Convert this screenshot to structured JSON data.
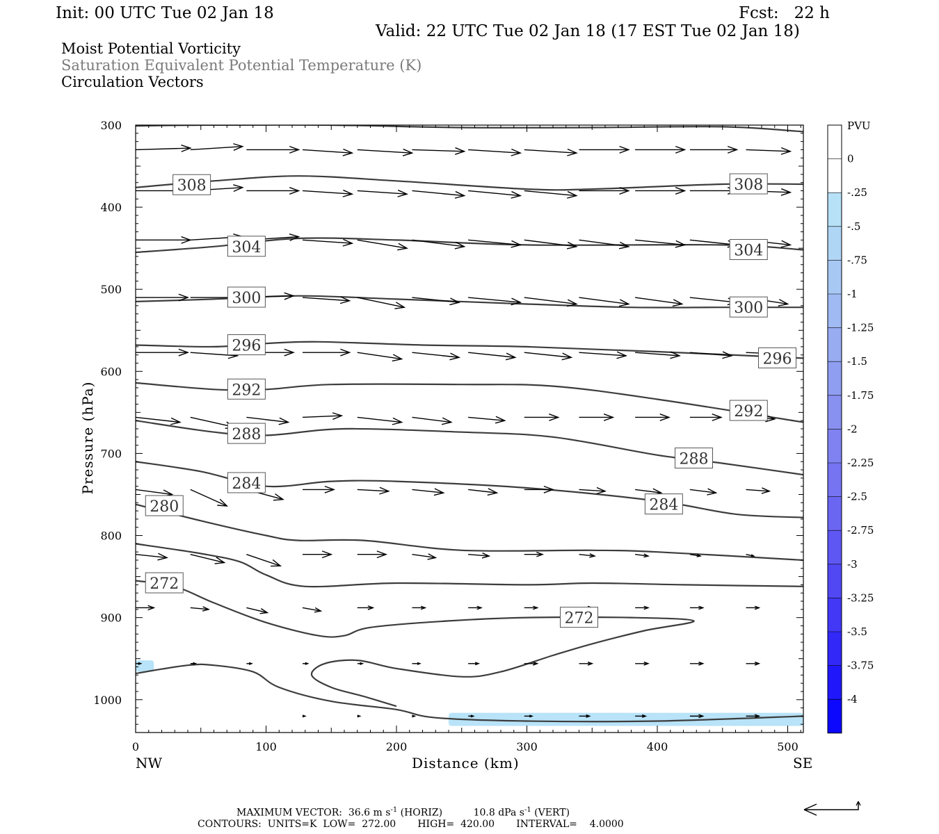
{
  "header": {
    "init": "Init: 00 UTC Tue 02 Jan 18",
    "fcst": "Fcst:   22 h",
    "valid": "Valid: 22 UTC Tue 02 Jan 18 (17 EST Tue 02 Jan 18)",
    "fields": [
      "Moist Potential Vorticity",
      "Saturation Equivalent Potential Temperature (K)",
      "Circulation Vectors"
    ]
  },
  "footer": {
    "max_vector_label": "MAXIMUM VECTOR:",
    "max_horiz": "36.6 m s",
    "horiz_unit": "(HORIZ)",
    "max_vert": "10.8 dPa s",
    "vert_unit": "(VERT)",
    "exp": "-1",
    "contours": "CONTOURS:  UNITS=K  LOW=  272.00       HIGH=  420.00       INTERVAL=    4.0000"
  },
  "colorbar": {
    "title": "PVU",
    "labels": [
      "0",
      "-.25",
      "-.5",
      "-.75",
      "-1",
      "-1.25",
      "-1.5",
      "-1.75",
      "-2",
      "-2.25",
      "-2.5",
      "-2.75",
      "-3",
      "-3.25",
      "-3.5",
      "-3.75",
      "-4"
    ],
    "colors": [
      "#ffffff",
      "#ffffff",
      "#b7e1f7",
      "#b0d6f6",
      "#a8c8f4",
      "#a0baf3",
      "#98acf2",
      "#909ef1",
      "#8890f0",
      "#7f82f0",
      "#7674f1",
      "#6b66f2",
      "#5f57f3",
      "#5148f4",
      "#4238f6",
      "#3228f8",
      "#2018fa",
      "#0c08fd"
    ]
  },
  "chart_data": {
    "type": "cross-section",
    "xlabel": "Distance (km)",
    "ylabel": "Pressure (hPa)",
    "xlim": [
      0,
      512
    ],
    "ylim": [
      1040,
      300
    ],
    "y_scale": "linear",
    "x_ticks": [
      "0",
      "100",
      "200",
      "300",
      "400",
      "500"
    ],
    "y_ticks": [
      "300",
      "400",
      "500",
      "600",
      "700",
      "800",
      "900",
      "1000"
    ],
    "x_end_labels": {
      "left": "NW",
      "right": "SE"
    },
    "theta_e_contours": [
      {
        "value": null,
        "label": "",
        "points": [
          [
            0,
            301
          ],
          [
            50,
            300
          ],
          [
            150,
            300
          ],
          [
            250,
            303
          ],
          [
            350,
            303
          ],
          [
            450,
            302
          ],
          [
            512,
            308
          ]
        ]
      },
      {
        "value": 308,
        "label": "308",
        "points": [
          [
            0,
            376
          ],
          [
            60,
            368
          ],
          [
            125,
            362
          ],
          [
            200,
            368
          ],
          [
            300,
            378
          ],
          [
            350,
            378
          ],
          [
            450,
            372
          ],
          [
            512,
            372
          ]
        ]
      },
      {
        "value": 304,
        "label": "304",
        "points": [
          [
            0,
            455
          ],
          [
            60,
            448
          ],
          [
            125,
            438
          ],
          [
            200,
            440
          ],
          [
            300,
            446
          ],
          [
            450,
            446
          ],
          [
            512,
            452
          ]
        ]
      },
      {
        "value": 300,
        "label": "300",
        "points": [
          [
            0,
            515
          ],
          [
            60,
            512
          ],
          [
            125,
            508
          ],
          [
            200,
            512
          ],
          [
            300,
            518
          ],
          [
            380,
            522
          ],
          [
            450,
            522
          ],
          [
            512,
            522
          ]
        ]
      },
      {
        "value": 296,
        "label": "296",
        "points": [
          [
            0,
            568
          ],
          [
            60,
            570
          ],
          [
            100,
            566
          ],
          [
            140,
            564
          ],
          [
            220,
            568
          ],
          [
            300,
            570
          ],
          [
            400,
            576
          ],
          [
            512,
            584
          ]
        ]
      },
      {
        "value": 292,
        "label": "292",
        "points": [
          [
            0,
            614
          ],
          [
            60,
            622
          ],
          [
            100,
            622
          ],
          [
            150,
            616
          ],
          [
            250,
            616
          ],
          [
            320,
            618
          ],
          [
            400,
            634
          ],
          [
            512,
            662
          ]
        ]
      },
      {
        "value": 288,
        "label": "288",
        "points": [
          [
            0,
            660
          ],
          [
            60,
            674
          ],
          [
            100,
            678
          ],
          [
            160,
            670
          ],
          [
            250,
            674
          ],
          [
            320,
            680
          ],
          [
            400,
            702
          ],
          [
            450,
            712
          ],
          [
            512,
            726
          ]
        ]
      },
      {
        "value": 284,
        "label": "284",
        "points": [
          [
            0,
            710
          ],
          [
            50,
            722
          ],
          [
            100,
            740
          ],
          [
            150,
            734
          ],
          [
            200,
            734
          ],
          [
            300,
            742
          ],
          [
            400,
            758
          ],
          [
            460,
            774
          ],
          [
            512,
            778
          ]
        ]
      },
      {
        "value": 280,
        "label": "280",
        "points": [
          [
            0,
            762
          ],
          [
            50,
            782
          ],
          [
            100,
            800
          ],
          [
            125,
            806
          ],
          [
            175,
            806
          ],
          [
            250,
            818
          ],
          [
            350,
            818
          ],
          [
            400,
            820
          ],
          [
            512,
            830
          ]
        ]
      },
      {
        "value": null,
        "label": "",
        "points": [
          [
            0,
            810
          ],
          [
            50,
            822
          ],
          [
            80,
            832
          ],
          [
            100,
            848
          ],
          [
            130,
            862
          ],
          [
            200,
            858
          ],
          [
            300,
            860
          ],
          [
            350,
            858
          ],
          [
            420,
            860
          ],
          [
            512,
            862
          ]
        ]
      },
      {
        "value": 272,
        "label": "272",
        "points": [
          [
            0,
            855
          ],
          [
            30,
            862
          ],
          [
            60,
            882
          ],
          [
            100,
            906
          ],
          [
            140,
            922
          ],
          [
            160,
            922
          ],
          [
            180,
            912
          ],
          [
            240,
            904
          ],
          [
            300,
            900
          ],
          [
            380,
            900
          ],
          [
            428,
            904
          ],
          [
            390,
            916
          ],
          [
            350,
            932
          ],
          [
            320,
            946
          ],
          [
            280,
            966
          ],
          [
            250,
            972
          ],
          [
            200,
            962
          ],
          [
            170,
            952
          ],
          [
            145,
            956
          ],
          [
            135,
            970
          ],
          [
            150,
            985
          ],
          [
            175,
            996
          ],
          [
            200,
            1008
          ]
        ]
      },
      {
        "value": null,
        "label": "",
        "points": [
          [
            0,
            968
          ],
          [
            40,
            958
          ],
          [
            60,
            958
          ],
          [
            90,
            966
          ],
          [
            110,
            985
          ],
          [
            150,
            1002
          ],
          [
            200,
            1012
          ],
          [
            230,
            1022
          ],
          [
            300,
            1026
          ],
          [
            400,
            1026
          ],
          [
            512,
            1020
          ]
        ]
      }
    ],
    "mpv_shading_pvu": [
      {
        "level": -0.25,
        "x": [
          0,
          14
        ],
        "p": [
          952,
          966
        ]
      },
      {
        "level": -0.25,
        "x": [
          240,
          512
        ],
        "p": [
          1016,
          1032
        ]
      }
    ],
    "circulation_vectors_note": "approx. grid of vectors every ~42 km from 0 to 500 km; mostly eastward (toward SE)",
    "vector_rows": [
      {
        "p": 330,
        "x": [
          0,
          42,
          85,
          128,
          170,
          212,
          255,
          298,
          340,
          383,
          425,
          468
        ],
        "dx": [
          42,
          40,
          40,
          38,
          42,
          40,
          40,
          40,
          38,
          38,
          36,
          34
        ],
        "dp": [
          -2,
          -4,
          0,
          4,
          4,
          2,
          4,
          4,
          0,
          0,
          0,
          2
        ]
      },
      {
        "p": 380,
        "x": [
          0,
          42,
          85,
          128,
          170,
          212,
          255,
          298,
          340,
          383,
          425,
          468
        ],
        "dx": [
          42,
          40,
          40,
          38,
          38,
          40,
          40,
          40,
          38,
          38,
          36,
          34
        ],
        "dp": [
          0,
          -4,
          0,
          4,
          4,
          6,
          6,
          6,
          0,
          0,
          0,
          2
        ]
      },
      {
        "p": 440,
        "x": [
          0,
          42,
          85,
          128,
          170,
          212,
          255,
          298,
          340,
          383,
          425,
          468
        ],
        "dx": [
          42,
          40,
          40,
          38,
          38,
          40,
          40,
          40,
          38,
          38,
          36,
          34
        ],
        "dp": [
          0,
          -4,
          -4,
          4,
          10,
          8,
          6,
          8,
          8,
          6,
          6,
          6
        ]
      },
      {
        "p": 510,
        "x": [
          0,
          42,
          85,
          128,
          170,
          212,
          255,
          298,
          340,
          383,
          425,
          468
        ],
        "dx": [
          40,
          38,
          36,
          36,
          36,
          36,
          40,
          40,
          38,
          36,
          36,
          32
        ],
        "dp": [
          0,
          0,
          -2,
          4,
          12,
          6,
          6,
          8,
          8,
          8,
          6,
          8
        ]
      },
      {
        "p": 577,
        "x": [
          0,
          42,
          85,
          128,
          170,
          212,
          255,
          298,
          340,
          383,
          425,
          468
        ],
        "dx": [
          40,
          36,
          36,
          36,
          34,
          36,
          36,
          36,
          36,
          34,
          32,
          30
        ],
        "dp": [
          0,
          4,
          0,
          0,
          8,
          6,
          6,
          6,
          4,
          4,
          4,
          2
        ]
      },
      {
        "p": 656,
        "x": [
          0,
          42,
          85,
          128,
          170,
          212,
          255,
          298,
          340,
          383,
          425,
          468
        ],
        "dx": [
          34,
          34,
          32,
          30,
          34,
          30,
          28,
          26,
          26,
          26,
          24,
          22
        ],
        "dp": [
          6,
          12,
          6,
          -2,
          6,
          6,
          4,
          0,
          0,
          0,
          0,
          2
        ]
      },
      {
        "p": 744,
        "x": [
          0,
          42,
          85,
          128,
          170,
          212,
          255,
          298,
          340,
          383,
          425,
          468
        ],
        "dx": [
          28,
          28,
          28,
          24,
          24,
          24,
          22,
          22,
          20,
          20,
          20,
          18
        ],
        "dp": [
          6,
          20,
          12,
          0,
          2,
          4,
          4,
          0,
          2,
          4,
          4,
          2
        ]
      },
      {
        "p": 823,
        "x": [
          0,
          42,
          85,
          128,
          170,
          212,
          255,
          298,
          340,
          383,
          425,
          468
        ],
        "dx": [
          24,
          26,
          26,
          22,
          22,
          18,
          16,
          14,
          12,
          10,
          8,
          6
        ],
        "dp": [
          4,
          10,
          14,
          0,
          0,
          4,
          2,
          0,
          2,
          2,
          2,
          2
        ]
      },
      {
        "p": 888,
        "x": [
          0,
          42,
          85,
          128,
          170,
          212,
          255,
          298,
          340,
          383,
          425,
          468
        ],
        "dx": [
          14,
          14,
          16,
          14,
          12,
          10,
          10,
          10,
          10,
          10,
          10,
          10
        ],
        "dp": [
          0,
          2,
          6,
          4,
          0,
          0,
          0,
          0,
          0,
          0,
          0,
          0
        ]
      },
      {
        "p": 956,
        "x": [
          0,
          42,
          85,
          128,
          170,
          212,
          255,
          298,
          340,
          383,
          425,
          468
        ],
        "dx": [
          4,
          4,
          4,
          4,
          4,
          6,
          8,
          10,
          10,
          10,
          10,
          10
        ],
        "dp": [
          0,
          0,
          0,
          0,
          0,
          0,
          0,
          0,
          0,
          0,
          0,
          0
        ]
      },
      {
        "p": 1020,
        "x": [
          128,
          170,
          212,
          255,
          298,
          340,
          383,
          425,
          468
        ],
        "dx": [
          2,
          2,
          2,
          4,
          6,
          8,
          8,
          10,
          10
        ],
        "dp": [
          0,
          0,
          0,
          0,
          0,
          0,
          0,
          0,
          0
        ]
      }
    ]
  }
}
